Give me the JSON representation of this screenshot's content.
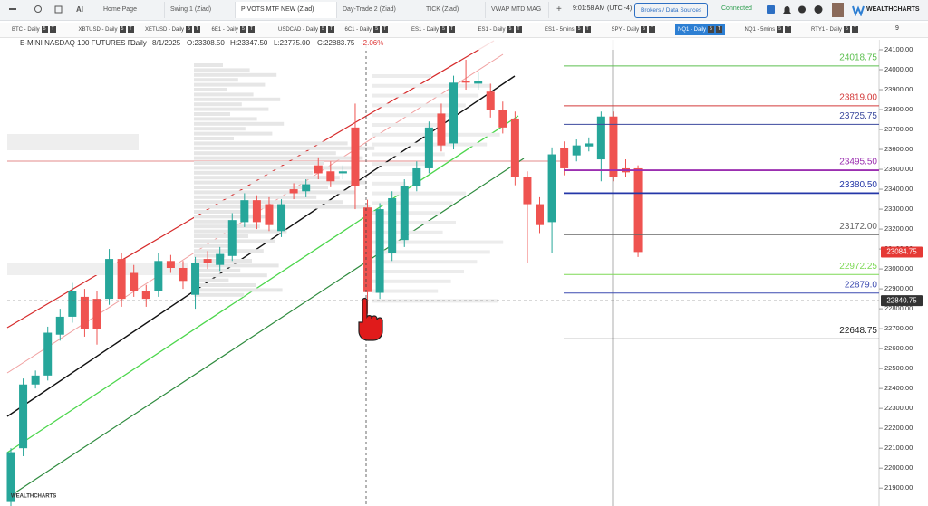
{
  "top_bar": {
    "ai_label": "AI",
    "browser_tabs": [
      "Home Page",
      "Swing 1 (Ziad)",
      "PIVOTS MTF NEW (Ziad)",
      "Day-Trade 2 (Ziad)",
      "TICK (Ziad)",
      "VWAP MTD MAG"
    ],
    "active_tab": 2,
    "add_tab": "+",
    "time": "9:01:58 AM",
    "timezone": "(UTC -4)",
    "brokers_button": "Brokers / Data Sources",
    "status": "Connected",
    "brand": "WEALTHCHARTS"
  },
  "symbol_bar": {
    "tabs": [
      "BTC - Daily",
      "XBTUSD - Daily",
      "XETUSD - Daily",
      "6E1 - Daily",
      "USDCAD - Daily",
      "6C1 - Daily",
      "ES1 - Daily",
      "ES1 - Daily",
      "ES1 - 5mins",
      "SPY - Daily",
      "NQ1 - Daily",
      "NQ1 - 5mins",
      "RTY1 - Daily"
    ],
    "badges": [
      "5",
      "T"
    ],
    "active_tab": 10,
    "count": "9"
  },
  "chart_data": {
    "type": "candlestick",
    "title": "E-MINI NASDAQ 100 FUTURES F...",
    "interval": "Daily",
    "date": "8/1/2025",
    "readout": [
      "O:23308.50",
      "H:23347.50",
      "L:22775.00",
      "C:22883.75"
    ],
    "change": "-2.06%",
    "up_color": "#26a69a",
    "down_color": "#ef5350",
    "ylim": [
      21810,
      24150
    ],
    "yticks": [
      {
        "value": 24100,
        "label": "24100.00"
      },
      {
        "value": 24000,
        "label": "24000.00"
      },
      {
        "value": 23900,
        "label": "23900.00"
      },
      {
        "value": 23800,
        "label": "23800.00"
      },
      {
        "value": 23700,
        "label": "23700.00"
      },
      {
        "value": 23600,
        "label": "23600.00"
      },
      {
        "value": 23500,
        "label": "23500.00"
      },
      {
        "value": 23400,
        "label": "23400.00"
      },
      {
        "value": 23300,
        "label": "23300.00"
      },
      {
        "value": 23200,
        "label": "23200.00"
      },
      {
        "value": 23100,
        "label": "23100.00"
      },
      {
        "value": 23000,
        "label": "23000.00"
      },
      {
        "value": 22900,
        "label": "22900.00"
      },
      {
        "value": 22800,
        "label": "22800.00"
      },
      {
        "value": 22700,
        "label": "22700.00"
      },
      {
        "value": 22600,
        "label": "22600.00"
      },
      {
        "value": 22500,
        "label": "22500.00"
      },
      {
        "value": 22400,
        "label": "22400.00"
      },
      {
        "value": 22300,
        "label": "22300.00"
      },
      {
        "value": 22200,
        "label": "22200.00"
      },
      {
        "value": 22100,
        "label": "22100.00"
      },
      {
        "value": 22000,
        "label": "22000.00"
      },
      {
        "value": 21900,
        "label": "21900.00"
      }
    ],
    "candles": [
      {
        "o": 21830,
        "h": 22100,
        "l": 21800,
        "c": 22080
      },
      {
        "o": 22100,
        "h": 22450,
        "l": 22060,
        "c": 22420
      },
      {
        "o": 22420,
        "h": 22490,
        "l": 22400,
        "c": 22465
      },
      {
        "o": 22465,
        "h": 22710,
        "l": 22440,
        "c": 22680
      },
      {
        "o": 22670,
        "h": 22800,
        "l": 22640,
        "c": 22760
      },
      {
        "o": 22760,
        "h": 22930,
        "l": 22730,
        "c": 22890
      },
      {
        "o": 22860,
        "h": 22900,
        "l": 22660,
        "c": 22700
      },
      {
        "o": 22850,
        "h": 22890,
        "l": 22620,
        "c": 22700
      },
      {
        "o": 22850,
        "h": 23100,
        "l": 22820,
        "c": 23050
      },
      {
        "o": 23050,
        "h": 23080,
        "l": 22810,
        "c": 22850
      },
      {
        "o": 22980,
        "h": 23020,
        "l": 22860,
        "c": 22890
      },
      {
        "o": 22890,
        "h": 22920,
        "l": 22810,
        "c": 22850
      },
      {
        "o": 22890,
        "h": 23080,
        "l": 22860,
        "c": 23040
      },
      {
        "o": 23040,
        "h": 23070,
        "l": 22980,
        "c": 23005
      },
      {
        "o": 23005,
        "h": 23040,
        "l": 22900,
        "c": 22940
      },
      {
        "o": 22870,
        "h": 23060,
        "l": 22800,
        "c": 23030
      },
      {
        "o": 23050,
        "h": 23090,
        "l": 23000,
        "c": 23030
      },
      {
        "o": 23020,
        "h": 23110,
        "l": 22990,
        "c": 23075
      },
      {
        "o": 23065,
        "h": 23280,
        "l": 23040,
        "c": 23245
      },
      {
        "o": 23235,
        "h": 23380,
        "l": 23210,
        "c": 23345
      },
      {
        "o": 23345,
        "h": 23370,
        "l": 23200,
        "c": 23235
      },
      {
        "o": 23325,
        "h": 23360,
        "l": 23190,
        "c": 23220
      },
      {
        "o": 23190,
        "h": 23350,
        "l": 23160,
        "c": 23325
      },
      {
        "o": 23400,
        "h": 23430,
        "l": 23350,
        "c": 23380
      },
      {
        "o": 23390,
        "h": 23450,
        "l": 23360,
        "c": 23425
      },
      {
        "o": 23520,
        "h": 23560,
        "l": 23450,
        "c": 23480
      },
      {
        "o": 23490,
        "h": 23540,
        "l": 23410,
        "c": 23440
      },
      {
        "o": 23480,
        "h": 23520,
        "l": 23450,
        "c": 23490
      },
      {
        "o": 23710,
        "h": 23830,
        "l": 23300,
        "c": 23415
      },
      {
        "o": 23308.5,
        "h": 23347.5,
        "l": 22775,
        "c": 22883.75
      },
      {
        "o": 22880,
        "h": 23330,
        "l": 22850,
        "c": 23300
      },
      {
        "o": 23080,
        "h": 23390,
        "l": 23040,
        "c": 23355
      },
      {
        "o": 23145,
        "h": 23450,
        "l": 23110,
        "c": 23415
      },
      {
        "o": 23415,
        "h": 23540,
        "l": 23390,
        "c": 23505
      },
      {
        "o": 23505,
        "h": 23740,
        "l": 23480,
        "c": 23710
      },
      {
        "o": 23780,
        "h": 23830,
        "l": 23590,
        "c": 23620
      },
      {
        "o": 23630,
        "h": 23970,
        "l": 23600,
        "c": 23935
      },
      {
        "o": 23945,
        "h": 24050,
        "l": 23900,
        "c": 23935
      },
      {
        "o": 23930,
        "h": 23990,
        "l": 23900,
        "c": 23945
      },
      {
        "o": 23890,
        "h": 23930,
        "l": 23760,
        "c": 23800
      },
      {
        "o": 23800,
        "h": 23840,
        "l": 23680,
        "c": 23710
      },
      {
        "o": 23755,
        "h": 23790,
        "l": 23420,
        "c": 23460
      },
      {
        "o": 23460,
        "h": 23490,
        "l": 23030,
        "c": 23325
      },
      {
        "o": 23325,
        "h": 23360,
        "l": 23180,
        "c": 23220
      },
      {
        "o": 23235,
        "h": 23610,
        "l": 23080,
        "c": 23575
      },
      {
        "o": 23605,
        "h": 23640,
        "l": 23470,
        "c": 23505
      },
      {
        "o": 23570,
        "h": 23650,
        "l": 23540,
        "c": 23620
      },
      {
        "o": 23615,
        "h": 23660,
        "l": 23590,
        "c": 23630
      },
      {
        "o": 23550,
        "h": 23790,
        "l": 23440,
        "c": 23765
      },
      {
        "o": 23765,
        "h": 23790,
        "l": 23440,
        "c": 23460
      },
      {
        "o": 23505,
        "h": 23550,
        "l": 23460,
        "c": 23485
      },
      {
        "o": 23505,
        "h": 23520,
        "l": 23060,
        "c": 23085
      }
    ],
    "levels": [
      {
        "value": 24018.75,
        "label": "24018.75",
        "color": "#5cbf4f"
      },
      {
        "value": 23819,
        "label": "23819.00",
        "color": "#d33a3a"
      },
      {
        "value": 23725.75,
        "label": "23725.75",
        "color": "#3b4a9e"
      },
      {
        "value": 23495.5,
        "label": "23495.50",
        "color": "#9b2fb0"
      },
      {
        "value": 23380.5,
        "label": "23380.50",
        "color": "#2437a8"
      },
      {
        "value": 23172,
        "label": "23172.00",
        "color": "#666666"
      },
      {
        "value": 22972.25,
        "label": "22972.25",
        "color": "#7ed957"
      },
      {
        "value": 22879,
        "label": "22879.0",
        "color": "#3b4ab0"
      },
      {
        "value": 22648.75,
        "label": "22648.75",
        "color": "#222222"
      }
    ],
    "price_tags": [
      {
        "value": 23084.75,
        "label": "23084.75",
        "color": "#e53935"
      },
      {
        "value": 22840.75,
        "label": "22840.75",
        "color": "#333333"
      }
    ],
    "watermark": "WEALTHCHARTS"
  }
}
